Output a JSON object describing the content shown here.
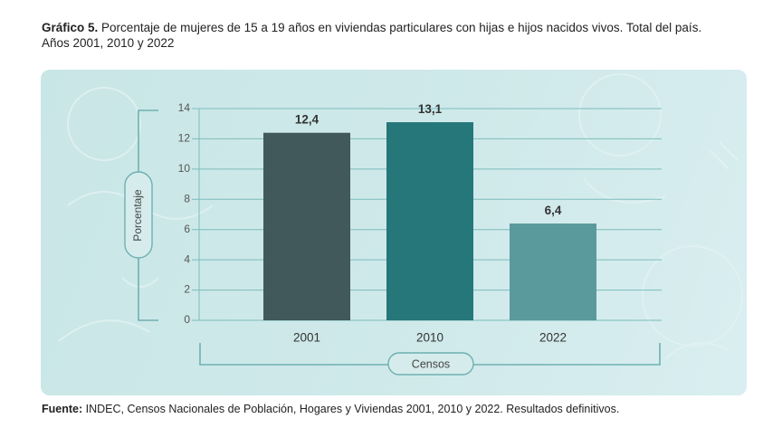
{
  "header": {
    "label": "Gráfico 5.",
    "text": "Porcentaje de mujeres de 15 a 19 años en viviendas particulares con hijas e hijos nacidos vivos. Total del país.",
    "years": "Años 2001, 2010 y 2022"
  },
  "footer": {
    "label": "Fuente:",
    "text": "INDEC, Censos Nacionales de Población, Hogares y Viviendas 2001, 2010 y 2022. Resultados definitivos."
  },
  "colors": {
    "bar_2001": "#41595b",
    "bar_2010": "#25777a",
    "bar_2022": "#5a999c",
    "grid": "#7cbcbc",
    "panel": "#cde8e9"
  },
  "chart_data": {
    "type": "bar",
    "categories": [
      "2001",
      "2010",
      "2022"
    ],
    "values": [
      12.4,
      13.1,
      6.4
    ],
    "value_labels": [
      "12,4",
      "13,1",
      "6,4"
    ],
    "xlabel": "Censos",
    "ylabel": "Porcentaje",
    "ylim": [
      0,
      14
    ],
    "yticks": [
      0,
      2,
      4,
      6,
      8,
      10,
      12,
      14
    ],
    "grid": true
  }
}
